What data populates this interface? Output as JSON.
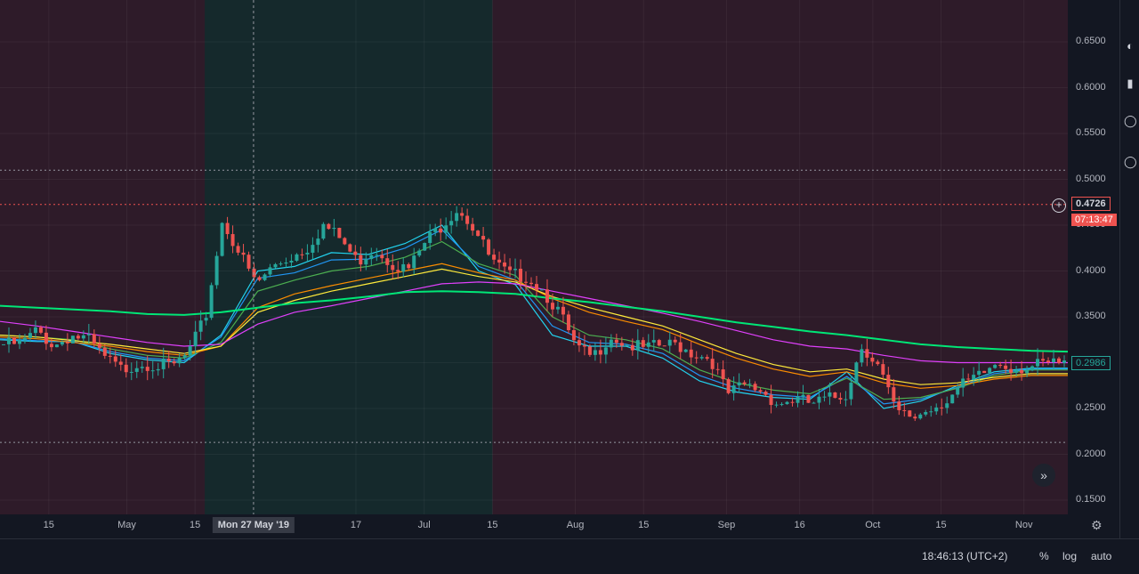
{
  "chart_data": {
    "type": "candlestick",
    "price_ticks": [
      "0.6500",
      "0.6000",
      "0.5500",
      "0.5000",
      "0.4500",
      "0.4000",
      "0.3500",
      "0.3000",
      "0.2500",
      "0.2000",
      "0.1500"
    ],
    "x_ticks": [
      {
        "label": "15",
        "date": "2019-04-15"
      },
      {
        "label": "May",
        "date": "2019-05-01"
      },
      {
        "label": "15",
        "date": "2019-05-15"
      },
      {
        "label": "17",
        "date": "2019-06-17"
      },
      {
        "label": "Jul",
        "date": "2019-07-01"
      },
      {
        "label": "15",
        "date": "2019-07-15"
      },
      {
        "label": "Aug",
        "date": "2019-08-01"
      },
      {
        "label": "15",
        "date": "2019-08-15"
      },
      {
        "label": "Sep",
        "date": "2019-09-01"
      },
      {
        "label": "16",
        "date": "2019-09-16"
      },
      {
        "label": "Oct",
        "date": "2019-10-01"
      },
      {
        "label": "15",
        "date": "2019-10-15"
      },
      {
        "label": "Nov",
        "date": "2019-11-01"
      }
    ],
    "crosshair_date_label": "Mon 27 May '19",
    "current_price": "0.4726",
    "countdown": "07:13:47",
    "last_price": "0.2986",
    "dotted_levels": [
      0.51,
      0.213
    ],
    "shaded_range": {
      "start": "2019-05-17",
      "end": "2019-07-15"
    },
    "colors": {
      "up": "#26a69a",
      "down": "#ef5350",
      "bg": "#131722",
      "shade_red": "rgba(120,40,60,0.28)",
      "shade_green": "rgba(30,110,80,0.22)"
    },
    "price_series": [
      [
        0.32,
        0.32,
        0.335,
        0.318,
        0.33,
        0.325,
        0.305,
        0.292,
        0.3,
        0.298,
        0.295,
        0.31,
        0.35,
        0.455,
        0.42,
        0.385,
        0.405,
        0.415,
        0.425,
        0.45,
        0.435,
        0.41,
        0.425,
        0.41,
        0.4,
        0.43,
        0.45,
        0.47,
        0.445,
        0.41,
        0.395,
        0.395,
        0.38,
        0.355,
        0.315,
        0.305,
        0.33,
        0.32,
        0.315,
        0.318,
        0.32,
        0.31,
        0.305,
        0.265,
        0.275,
        0.27,
        0.255,
        0.26,
        0.255,
        0.26,
        0.265,
        0.32,
        0.295,
        0.245,
        0.24,
        0.25,
        0.26,
        0.275,
        0.285,
        0.3,
        0.295,
        0.295,
        0.298,
        0.2986
      ]
    ],
    "moving_averages": [
      {
        "color": "#22d3ee",
        "values": [
          0.325,
          0.323,
          0.323,
          0.31,
          0.303,
          0.3,
          0.33,
          0.4,
          0.405,
          0.42,
          0.418,
          0.43,
          0.45,
          0.4,
          0.385,
          0.33,
          0.318,
          0.318,
          0.305,
          0.28,
          0.268,
          0.262,
          0.26,
          0.29,
          0.25,
          0.258,
          0.275,
          0.29,
          0.294,
          0.294
        ]
      },
      {
        "color": "#2196f3",
        "values": [
          0.326,
          0.324,
          0.323,
          0.312,
          0.305,
          0.302,
          0.328,
          0.392,
          0.398,
          0.412,
          0.413,
          0.425,
          0.445,
          0.405,
          0.39,
          0.34,
          0.322,
          0.32,
          0.31,
          0.286,
          0.272,
          0.265,
          0.262,
          0.285,
          0.255,
          0.26,
          0.273,
          0.288,
          0.293,
          0.293
        ]
      },
      {
        "color": "#4caf50",
        "values": [
          0.33,
          0.328,
          0.325,
          0.315,
          0.308,
          0.305,
          0.322,
          0.378,
          0.39,
          0.4,
          0.405,
          0.415,
          0.432,
          0.408,
          0.395,
          0.35,
          0.33,
          0.325,
          0.315,
          0.292,
          0.278,
          0.27,
          0.266,
          0.283,
          0.26,
          0.262,
          0.272,
          0.286,
          0.292,
          0.292
        ]
      },
      {
        "color": "#fb8c00",
        "values": [
          0.328,
          0.326,
          0.322,
          0.318,
          0.312,
          0.308,
          0.318,
          0.36,
          0.375,
          0.384,
          0.392,
          0.4,
          0.408,
          0.398,
          0.39,
          0.37,
          0.355,
          0.345,
          0.336,
          0.32,
          0.305,
          0.293,
          0.285,
          0.29,
          0.278,
          0.272,
          0.275,
          0.282,
          0.286,
          0.286
        ]
      },
      {
        "color": "#ffeb3b",
        "values": [
          0.33,
          0.328,
          0.324,
          0.32,
          0.315,
          0.31,
          0.318,
          0.355,
          0.368,
          0.378,
          0.386,
          0.394,
          0.402,
          0.394,
          0.388,
          0.372,
          0.36,
          0.35,
          0.34,
          0.325,
          0.31,
          0.298,
          0.29,
          0.293,
          0.282,
          0.276,
          0.278,
          0.284,
          0.288,
          0.288
        ]
      },
      {
        "color": "#e040fb",
        "values": [
          0.345,
          0.34,
          0.334,
          0.328,
          0.322,
          0.318,
          0.32,
          0.342,
          0.355,
          0.362,
          0.37,
          0.378,
          0.386,
          0.388,
          0.386,
          0.378,
          0.37,
          0.362,
          0.354,
          0.345,
          0.335,
          0.325,
          0.318,
          0.315,
          0.308,
          0.302,
          0.3,
          0.3,
          0.3,
          0.3
        ]
      },
      {
        "color": "#00e676",
        "values": [
          0.362,
          0.36,
          0.358,
          0.356,
          0.353,
          0.352,
          0.355,
          0.36,
          0.365,
          0.368,
          0.372,
          0.377,
          0.378,
          0.377,
          0.375,
          0.37,
          0.366,
          0.361,
          0.356,
          0.35,
          0.344,
          0.339,
          0.334,
          0.33,
          0.325,
          0.32,
          0.317,
          0.315,
          0.313,
          0.312
        ]
      }
    ]
  },
  "bottom_bar": {
    "time": "18:46:13 (UTC+2)",
    "percent": "%",
    "log": "log",
    "auto": "auto"
  },
  "icons": {
    "forward": "fast-forward-icon",
    "settings": "gear-icon",
    "add": "plus-circle-icon"
  }
}
